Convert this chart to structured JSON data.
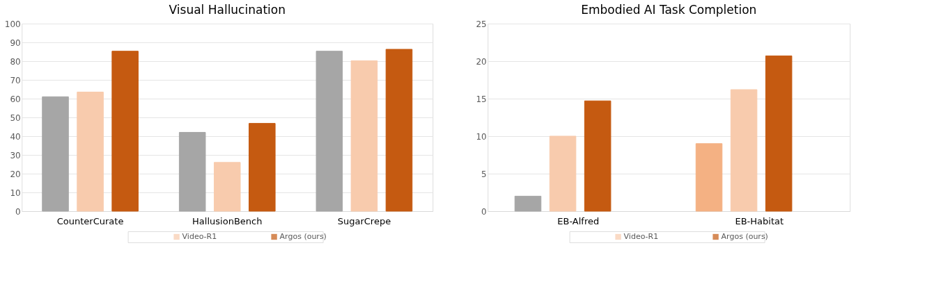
{
  "chart_data": [
    {
      "type": "bar",
      "title": "Visual Hallucination",
      "categories": [
        "CounterCurate",
        "HallusionBench",
        "SugarCrepe"
      ],
      "series": [
        {
          "color": "#a6a6a6",
          "values": [
            61,
            42,
            85.3
          ]
        },
        {
          "name": "Video-R1",
          "color": "#f8cbad",
          "values": [
            63.5,
            26,
            80.2
          ]
        },
        {
          "name": "Argos (ours)",
          "color": "#c55a11",
          "values": [
            85.3,
            46.8,
            86.3
          ]
        }
      ],
      "ylim": [
        0,
        100
      ],
      "yticks": [
        0,
        10,
        20,
        30,
        40,
        50,
        60,
        70,
        80,
        90,
        100
      ],
      "grid": "y",
      "legend": "bottom"
    },
    {
      "type": "bar",
      "title": "Embodied AI Task Completion",
      "categories": [
        "EB-Alfred",
        "EB-Habitat"
      ],
      "series": [
        {
          "colors": [
            "#a6a6a6",
            "#f4b183"
          ],
          "values": [
            2,
            9
          ]
        },
        {
          "name": "Video-R1",
          "color": "#f8cbad",
          "values": [
            10,
            16.2
          ]
        },
        {
          "name": "Argos (ours)",
          "color": "#c55a11",
          "values": [
            14.7,
            20.7
          ]
        }
      ],
      "ylim": [
        0,
        25
      ],
      "yticks": [
        0,
        5,
        10,
        15,
        20,
        25
      ],
      "grid": "y",
      "legend": "bottom"
    }
  ]
}
